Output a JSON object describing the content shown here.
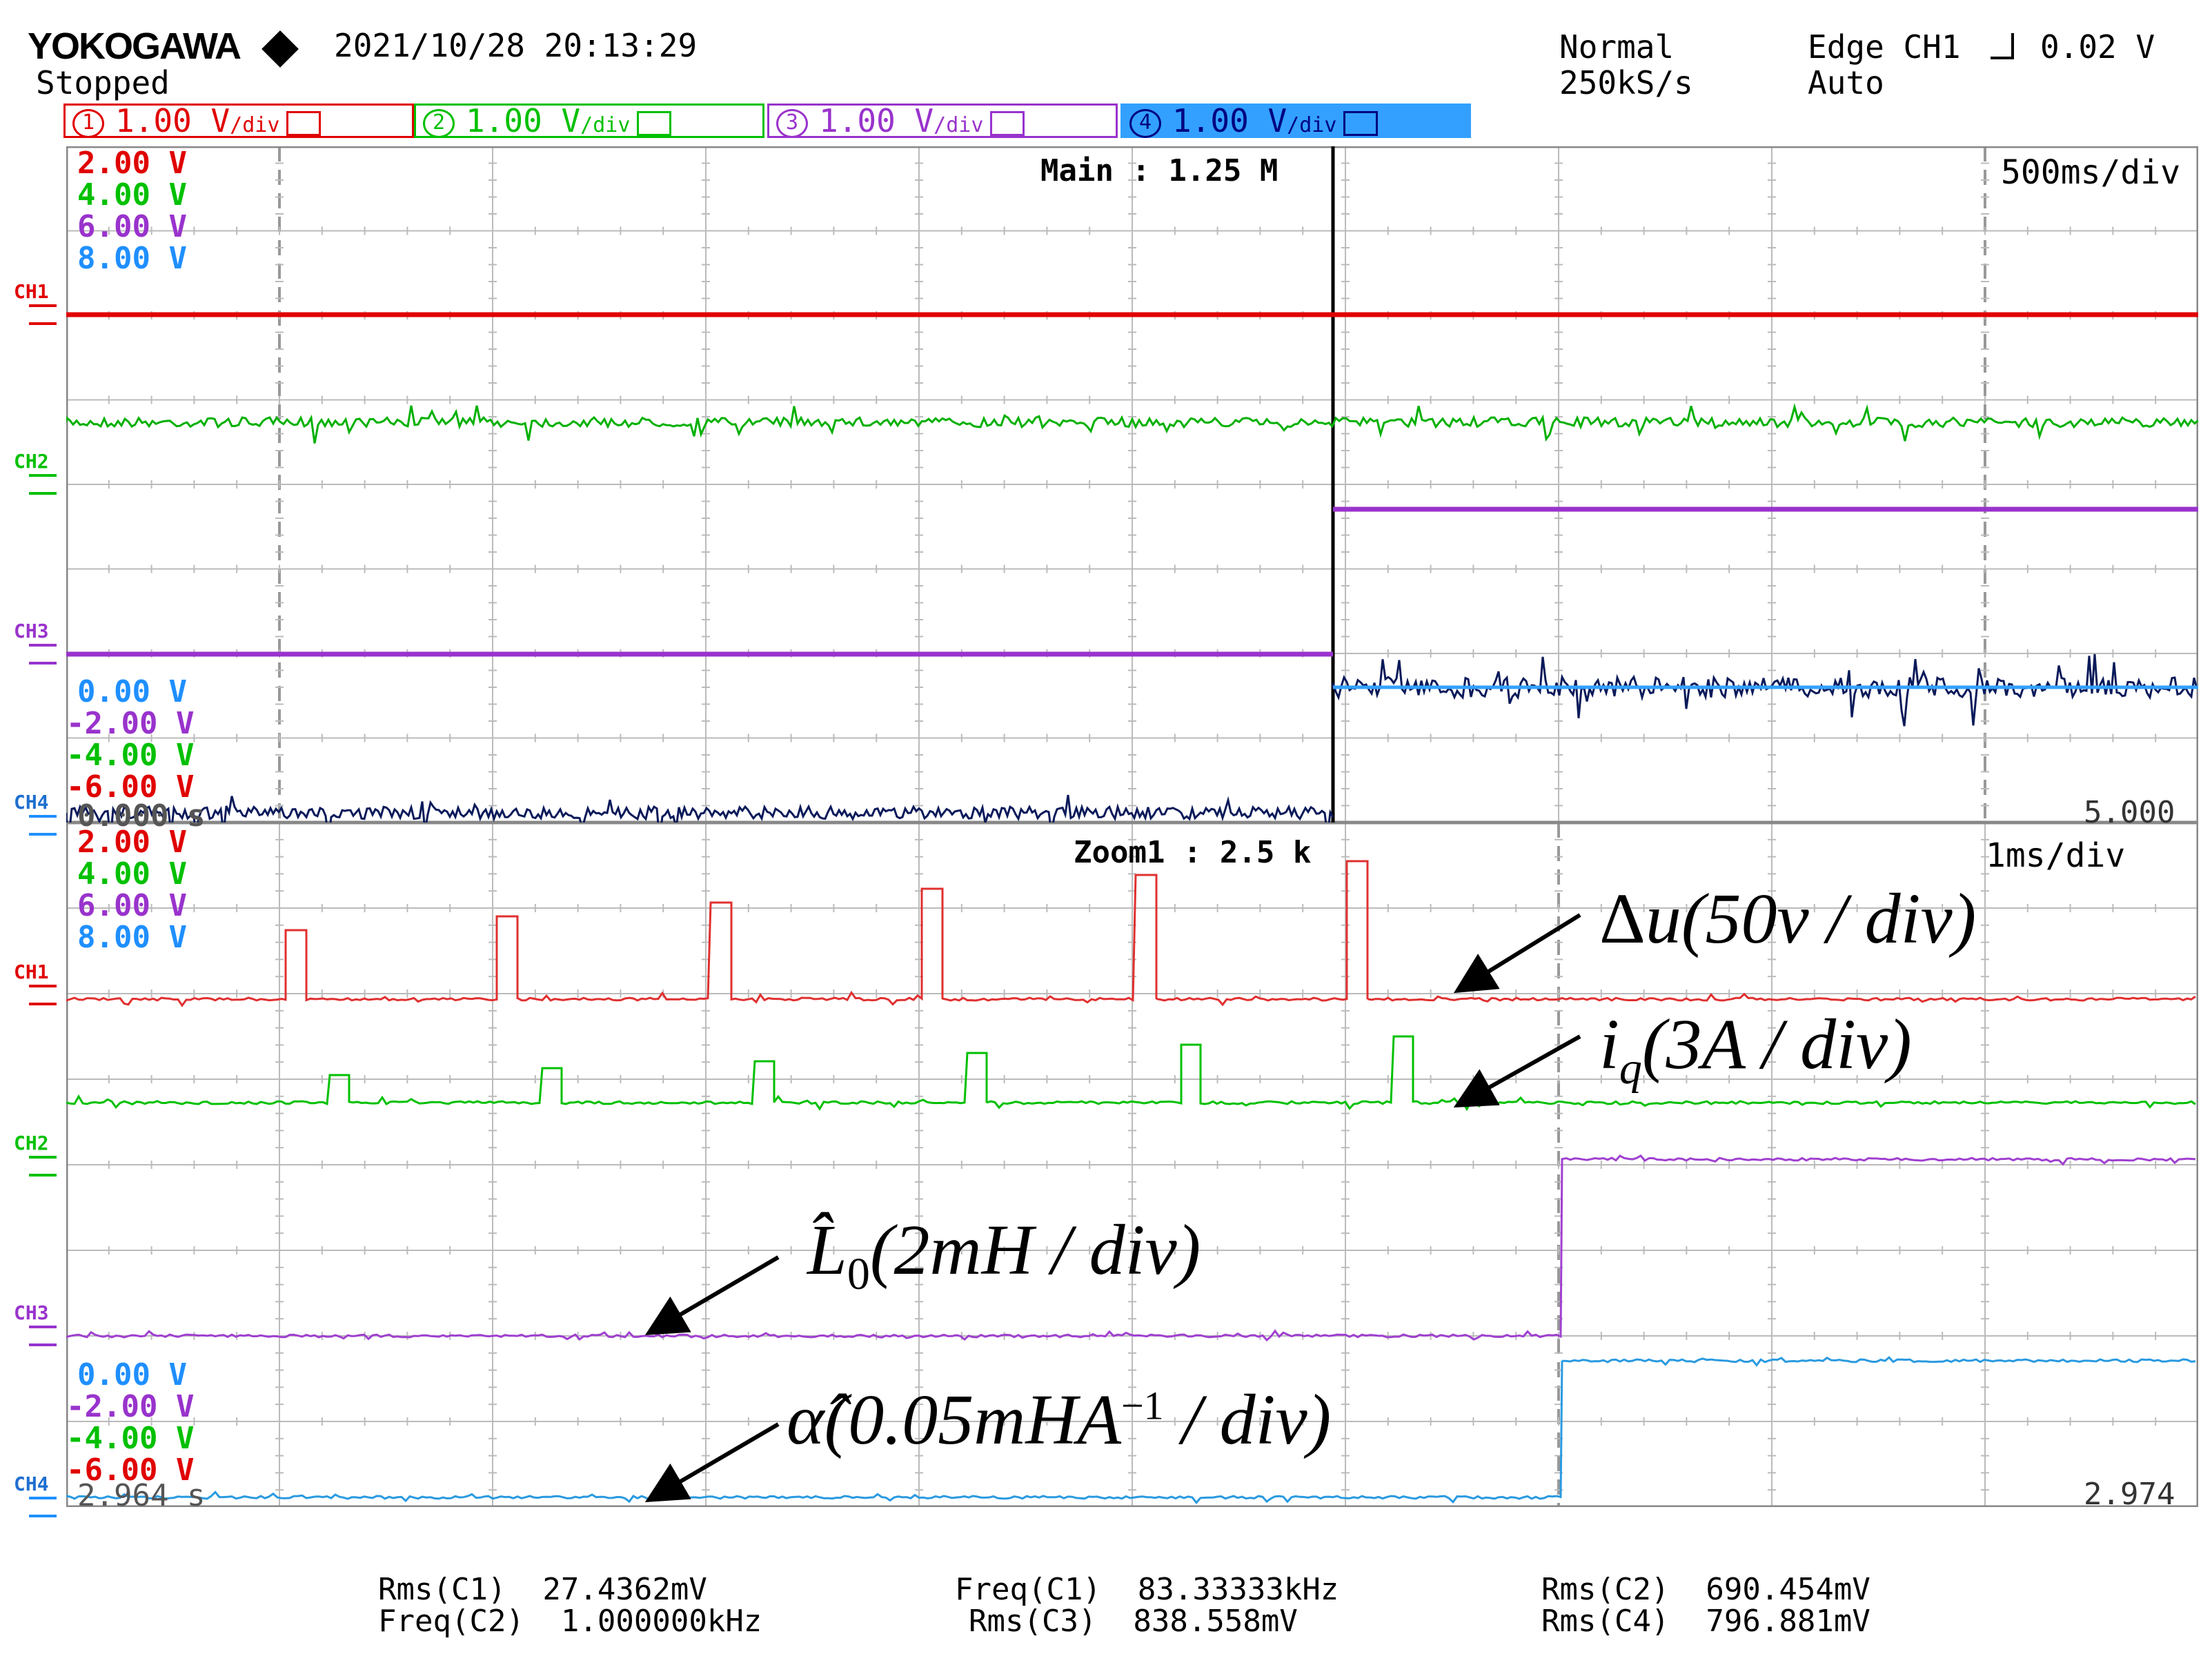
{
  "header": {
    "brand": "YOKOGAWA",
    "status": "Stopped",
    "datetime": "2021/10/28 20:13:29",
    "mode": "Normal",
    "sample_rate": "250kS/s",
    "trigger": "Edge CH1",
    "trigger_level": "0.02 V",
    "trigger_mode": "Auto"
  },
  "channels": [
    {
      "num": "1",
      "scale": "1.00 V",
      "unit": "/div",
      "color": "#e00000"
    },
    {
      "num": "2",
      "scale": "1.00 V",
      "unit": "/div",
      "color": "#00c000"
    },
    {
      "num": "3",
      "scale": "1.00 V",
      "unit": "/div",
      "color": "#9933cc"
    },
    {
      "num": "4",
      "scale": "1.00 V",
      "unit": "/div",
      "color": "#000080",
      "bg": "#33a0ff"
    }
  ],
  "main_panel": {
    "label": "Main : 1.25 M",
    "timebase": "500ms/div",
    "start_time": "0.000 s",
    "end_time": "5.000",
    "top_volts": [
      "2.00 V",
      "4.00 V",
      "6.00 V",
      "8.00 V"
    ],
    "bottom_volts": [
      "0.00 V",
      "-2.00 V",
      "-4.00 V",
      "-6.00 V"
    ]
  },
  "zoom_panel": {
    "label": "Zoom1 : 2.5 k",
    "timebase": "1ms/div",
    "start_time": "2.964 s",
    "end_time": "2.974",
    "top_volts": [
      "2.00 V",
      "4.00 V",
      "6.00 V",
      "8.00 V"
    ],
    "bottom_volts": [
      "0.00 V",
      "-2.00 V",
      "-4.00 V",
      "-6.00 V"
    ]
  },
  "channel_labels": [
    "CH1",
    "CH2",
    "CH3",
    "CH4"
  ],
  "annotations": {
    "du_sym": "Δ",
    "du_var": "u",
    "du_scale": "(50v / div)",
    "iq_var": "i",
    "iq_sub": "q",
    "iq_scale": "(3A / div)",
    "l0_var": "L̂",
    "l0_sub": "0",
    "l0_scale": "(2mH / div)",
    "alpha_var": "α̂",
    "alpha_scale_a": "(0.05mHA",
    "alpha_sup": "−1",
    "alpha_scale_b": " / div)"
  },
  "measurements": [
    {
      "label": "Rms(C1)",
      "value": "27.4362mV"
    },
    {
      "label": "Freq(C2)",
      "value": "1.000000kHz"
    },
    {
      "label": "Freq(C1)",
      "value": "83.33333kHz"
    },
    {
      "label": "Rms(C3)",
      "value": "838.558mV"
    },
    {
      "label": "Rms(C2)",
      "value": "690.454mV"
    },
    {
      "label": "Rms(C4)",
      "value": "796.881mV"
    }
  ]
}
